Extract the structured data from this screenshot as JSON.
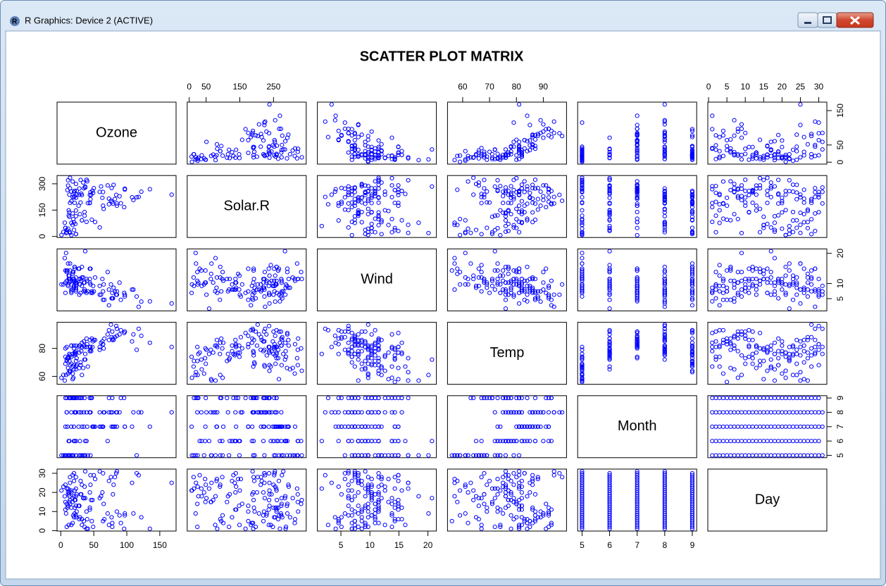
{
  "window_title": "R Graphics: Device 2 (ACTIVE)",
  "chart_data": {
    "type": "scatter_matrix",
    "title": "SCATTER PLOT MATRIX",
    "color": "#0000ff",
    "variables": [
      {
        "name": "Ozone",
        "lim": [
          -5.68,
          174.68
        ],
        "x_axis_side": "bottom",
        "x_axis_ticks": [
          0,
          50,
          100,
          150
        ],
        "y_axis_side": "right",
        "y_axis_ticks": [
          0,
          50,
          150
        ],
        "values": [
          41,
          36,
          12,
          18,
          null,
          28,
          23,
          19,
          8,
          null,
          7,
          16,
          11,
          14,
          18,
          14,
          34,
          6,
          30,
          11,
          1,
          11,
          4,
          32,
          null,
          null,
          null,
          23,
          45,
          115,
          37,
          null,
          null,
          null,
          null,
          null,
          null,
          29,
          null,
          71,
          39,
          null,
          null,
          23,
          null,
          null,
          21,
          37,
          20,
          12,
          13,
          null,
          null,
          null,
          null,
          null,
          null,
          null,
          null,
          null,
          null,
          135,
          49,
          32,
          null,
          64,
          40,
          77,
          97,
          97,
          85,
          null,
          10,
          27,
          null,
          7,
          48,
          35,
          61,
          79,
          63,
          16,
          null,
          null,
          80,
          108,
          20,
          52,
          82,
          50,
          64,
          59,
          39,
          9,
          16,
          78,
          35,
          66,
          122,
          89,
          110,
          null,
          null,
          44,
          28,
          65,
          null,
          22,
          59,
          23,
          31,
          44,
          21,
          9,
          null,
          45,
          168,
          73,
          null,
          76,
          118,
          84,
          85,
          96,
          78,
          73,
          91,
          47,
          32,
          20,
          23,
          21,
          24,
          44,
          21,
          28,
          9,
          13,
          46,
          18,
          13,
          24,
          16,
          13,
          23,
          36,
          7,
          14,
          30,
          null,
          14,
          18,
          20
        ]
      },
      {
        "name": "Solar.R",
        "lim": [
          -6.08,
          347.08
        ],
        "x_axis_side": "top",
        "x_axis_ticks": [
          0,
          50,
          150,
          250
        ],
        "y_axis_side": "left",
        "y_axis_ticks": [
          0,
          150,
          300
        ],
        "values": [
          190,
          118,
          149,
          313,
          null,
          null,
          299,
          99,
          19,
          194,
          null,
          256,
          290,
          274,
          65,
          334,
          307,
          78,
          322,
          44,
          8,
          320,
          25,
          92,
          66,
          266,
          null,
          13,
          252,
          223,
          279,
          286,
          287,
          242,
          186,
          220,
          264,
          127,
          273,
          291,
          323,
          259,
          250,
          148,
          332,
          322,
          191,
          284,
          37,
          120,
          137,
          150,
          59,
          91,
          250,
          135,
          127,
          47,
          98,
          31,
          138,
          269,
          248,
          236,
          101,
          175,
          314,
          276,
          267,
          272,
          175,
          139,
          264,
          175,
          291,
          48,
          260,
          274,
          285,
          187,
          220,
          7,
          258,
          295,
          294,
          223,
          81,
          82,
          213,
          275,
          253,
          254,
          83,
          24,
          77,
          null,
          null,
          null,
          255,
          229,
          207,
          222,
          137,
          192,
          273,
          157,
          64,
          71,
          51,
          115,
          244,
          190,
          259,
          36,
          255,
          212,
          238,
          215,
          153,
          203,
          225,
          237,
          188,
          167,
          197,
          183,
          189,
          95,
          92,
          252,
          220,
          230,
          259,
          236,
          259,
          238,
          24,
          112,
          237,
          224,
          27,
          238,
          201,
          238,
          14,
          139,
          49,
          20,
          193,
          145,
          191,
          131,
          223
        ]
      },
      {
        "name": "Wind",
        "lim": [
          0.94,
          21.46
        ],
        "x_axis_side": "bottom",
        "x_axis_ticks": [
          5,
          10,
          15,
          20
        ],
        "y_axis_side": "right",
        "y_axis_ticks": [
          5,
          10,
          20
        ],
        "values": [
          7.4,
          8.0,
          12.6,
          11.5,
          14.3,
          14.9,
          8.6,
          13.8,
          20.1,
          8.6,
          6.9,
          9.7,
          9.2,
          10.9,
          13.2,
          11.5,
          12.0,
          18.4,
          11.5,
          9.7,
          9.7,
          16.6,
          9.7,
          12.0,
          16.6,
          14.9,
          8.0,
          12.0,
          14.9,
          5.7,
          7.4,
          8.6,
          9.7,
          16.1,
          9.2,
          8.6,
          14.3,
          9.7,
          6.9,
          13.8,
          11.5,
          10.9,
          9.2,
          8.0,
          13.8,
          11.5,
          14.9,
          20.7,
          9.2,
          11.5,
          10.3,
          6.3,
          1.7,
          4.6,
          6.3,
          8.0,
          8.0,
          10.3,
          11.5,
          14.9,
          8.0,
          4.1,
          9.2,
          9.2,
          10.9,
          4.6,
          10.9,
          5.1,
          6.3,
          5.7,
          7.4,
          8.6,
          14.3,
          14.9,
          14.9,
          14.3,
          6.9,
          10.3,
          6.3,
          5.1,
          11.5,
          6.9,
          9.7,
          11.5,
          8.6,
          8.0,
          8.6,
          12.0,
          7.4,
          7.4,
          7.4,
          9.2,
          6.9,
          13.8,
          7.4,
          6.9,
          7.4,
          4.6,
          4.0,
          10.3,
          8.0,
          8.6,
          11.5,
          11.5,
          11.5,
          9.7,
          11.5,
          10.3,
          6.3,
          7.4,
          10.9,
          10.3,
          15.5,
          14.3,
          12.6,
          9.7,
          3.4,
          8.0,
          5.7,
          9.7,
          2.3,
          6.3,
          6.3,
          6.9,
          5.1,
          2.8,
          4.6,
          7.4,
          15.5,
          10.9,
          10.3,
          10.9,
          9.7,
          14.9,
          15.5,
          6.3,
          10.9,
          11.5,
          6.9,
          13.8,
          10.3,
          10.3,
          8.0,
          12.6,
          9.2,
          10.3,
          10.3,
          16.6,
          6.9,
          13.2,
          14.3,
          8.0,
          11.5
        ]
      },
      {
        "name": "Temp",
        "lim": [
          54.36,
          98.64
        ],
        "x_axis_side": "top",
        "x_axis_ticks": [
          60,
          70,
          80,
          90
        ],
        "y_axis_side": "left",
        "y_axis_ticks": [
          60,
          80
        ],
        "values": [
          67,
          72,
          74,
          62,
          56,
          66,
          65,
          59,
          61,
          69,
          74,
          69,
          66,
          68,
          58,
          64,
          66,
          57,
          68,
          62,
          59,
          73,
          61,
          61,
          57,
          58,
          57,
          67,
          81,
          79,
          76,
          78,
          74,
          67,
          84,
          85,
          79,
          82,
          87,
          90,
          87,
          93,
          92,
          82,
          80,
          79,
          77,
          72,
          65,
          73,
          76,
          77,
          76,
          76,
          76,
          75,
          78,
          73,
          80,
          77,
          83,
          84,
          85,
          81,
          84,
          83,
          83,
          88,
          92,
          92,
          89,
          82,
          73,
          81,
          91,
          80,
          81,
          82,
          84,
          87,
          85,
          74,
          81,
          82,
          86,
          85,
          82,
          86,
          88,
          86,
          83,
          81,
          81,
          81,
          82,
          86,
          85,
          87,
          89,
          90,
          90,
          92,
          86,
          86,
          82,
          80,
          79,
          77,
          79,
          76,
          78,
          78,
          77,
          72,
          75,
          79,
          81,
          86,
          88,
          97,
          94,
          96,
          94,
          91,
          92,
          93,
          93,
          87,
          84,
          80,
          78,
          75,
          73,
          81,
          76,
          77,
          71,
          71,
          78,
          67,
          76,
          68,
          82,
          64,
          71,
          81,
          69,
          63,
          70,
          77,
          75,
          76,
          68
        ]
      },
      {
        "name": "Month",
        "lim": [
          4.84,
          9.16
        ],
        "x_axis_side": "bottom",
        "x_axis_ticks": [
          5,
          6,
          7,
          8,
          9
        ],
        "y_axis_side": "right",
        "y_axis_ticks": [
          5,
          6,
          7,
          8,
          9
        ],
        "values": [
          5,
          5,
          5,
          5,
          5,
          5,
          5,
          5,
          5,
          5,
          5,
          5,
          5,
          5,
          5,
          5,
          5,
          5,
          5,
          5,
          5,
          5,
          5,
          5,
          5,
          5,
          5,
          5,
          5,
          5,
          5,
          6,
          6,
          6,
          6,
          6,
          6,
          6,
          6,
          6,
          6,
          6,
          6,
          6,
          6,
          6,
          6,
          6,
          6,
          6,
          6,
          6,
          6,
          6,
          6,
          6,
          6,
          6,
          6,
          6,
          6,
          7,
          7,
          7,
          7,
          7,
          7,
          7,
          7,
          7,
          7,
          7,
          7,
          7,
          7,
          7,
          7,
          7,
          7,
          7,
          7,
          7,
          7,
          7,
          7,
          7,
          7,
          7,
          7,
          7,
          7,
          7,
          8,
          8,
          8,
          8,
          8,
          8,
          8,
          8,
          8,
          8,
          8,
          8,
          8,
          8,
          8,
          8,
          8,
          8,
          8,
          8,
          8,
          8,
          8,
          8,
          8,
          8,
          8,
          8,
          8,
          8,
          8,
          9,
          9,
          9,
          9,
          9,
          9,
          9,
          9,
          9,
          9,
          9,
          9,
          9,
          9,
          9,
          9,
          9,
          9,
          9,
          9,
          9,
          9,
          9,
          9,
          9,
          9,
          9,
          9,
          9,
          9
        ]
      },
      {
        "name": "Day",
        "lim": [
          -0.2,
          32.2
        ],
        "x_axis_side": "top",
        "x_axis_ticks": [
          0,
          5,
          10,
          15,
          20,
          25,
          30
        ],
        "y_axis_side": "left",
        "y_axis_ticks": [
          0,
          10,
          20,
          30
        ],
        "values": [
          1,
          2,
          3,
          4,
          5,
          6,
          7,
          8,
          9,
          10,
          11,
          12,
          13,
          14,
          15,
          16,
          17,
          18,
          19,
          20,
          21,
          22,
          23,
          24,
          25,
          26,
          27,
          28,
          29,
          30,
          31,
          1,
          2,
          3,
          4,
          5,
          6,
          7,
          8,
          9,
          10,
          11,
          12,
          13,
          14,
          15,
          16,
          17,
          18,
          19,
          20,
          21,
          22,
          23,
          24,
          25,
          26,
          27,
          28,
          29,
          30,
          1,
          2,
          3,
          4,
          5,
          6,
          7,
          8,
          9,
          10,
          11,
          12,
          13,
          14,
          15,
          16,
          17,
          18,
          19,
          20,
          21,
          22,
          23,
          24,
          25,
          26,
          27,
          28,
          29,
          30,
          31,
          1,
          2,
          3,
          4,
          5,
          6,
          7,
          8,
          9,
          10,
          11,
          12,
          13,
          14,
          15,
          16,
          17,
          18,
          19,
          20,
          21,
          22,
          23,
          24,
          25,
          26,
          27,
          28,
          29,
          30,
          31,
          1,
          2,
          3,
          4,
          5,
          6,
          7,
          8,
          9,
          10,
          11,
          12,
          13,
          14,
          15,
          16,
          17,
          18,
          19,
          20,
          21,
          22,
          23,
          24,
          25,
          26,
          27,
          28,
          29,
          30
        ]
      }
    ]
  }
}
